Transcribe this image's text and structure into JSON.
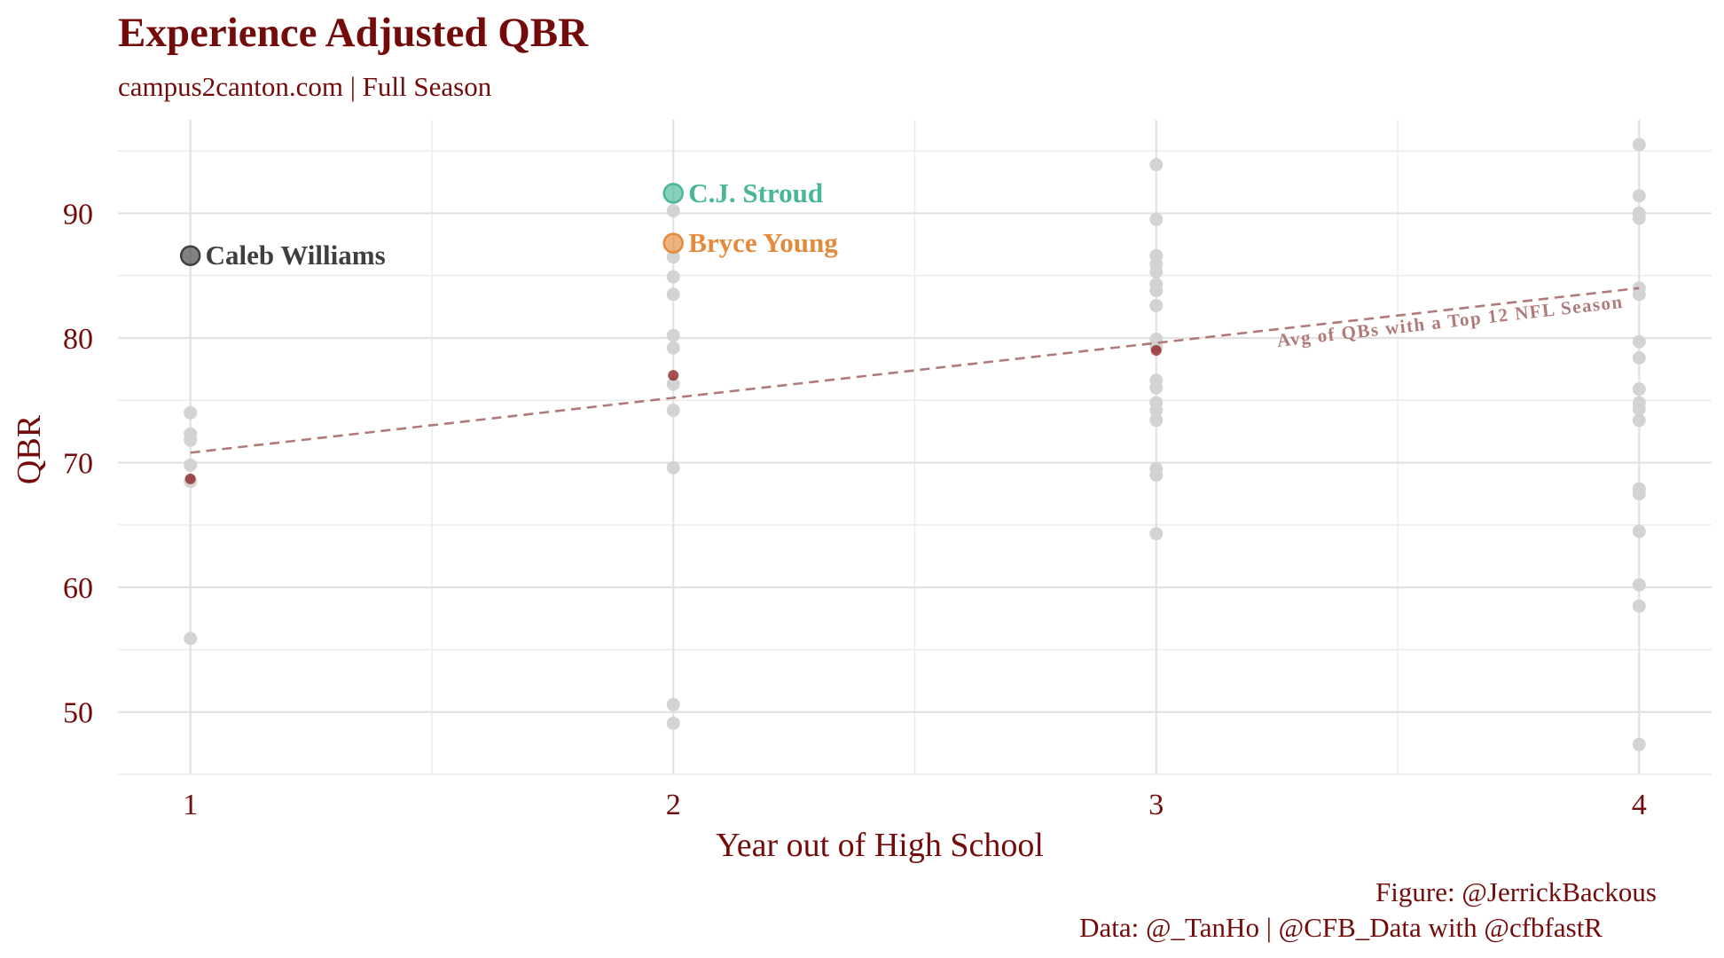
{
  "chart_data": {
    "type": "scatter",
    "title": "Experience Adjusted QBR",
    "subtitle": "campus2canton.com | Full Season",
    "xlabel": "Year out of High School",
    "ylabel": "QBR",
    "xlim": [
      0.85,
      4.15
    ],
    "ylim": [
      45,
      97.5
    ],
    "x_ticks": [
      1,
      2,
      3,
      4
    ],
    "y_ticks": [
      50,
      60,
      70,
      80,
      90
    ],
    "grid": true,
    "series": [
      {
        "role": "other-qbs",
        "color": "#d3d3d3",
        "points": [
          {
            "x": 1,
            "y": 74.0
          },
          {
            "x": 1,
            "y": 72.3
          },
          {
            "x": 1,
            "y": 71.8
          },
          {
            "x": 1,
            "y": 69.8
          },
          {
            "x": 1,
            "y": 68.5
          },
          {
            "x": 1,
            "y": 55.9
          },
          {
            "x": 2,
            "y": 90.2
          },
          {
            "x": 2,
            "y": 86.5
          },
          {
            "x": 2,
            "y": 84.9
          },
          {
            "x": 2,
            "y": 83.5
          },
          {
            "x": 2,
            "y": 80.2
          },
          {
            "x": 2,
            "y": 79.2
          },
          {
            "x": 2,
            "y": 76.3
          },
          {
            "x": 2,
            "y": 74.2
          },
          {
            "x": 2,
            "y": 69.6
          },
          {
            "x": 2,
            "y": 50.6
          },
          {
            "x": 2,
            "y": 49.1
          },
          {
            "x": 3,
            "y": 93.9
          },
          {
            "x": 3,
            "y": 89.5
          },
          {
            "x": 3,
            "y": 86.6
          },
          {
            "x": 3,
            "y": 85.9
          },
          {
            "x": 3,
            "y": 85.3
          },
          {
            "x": 3,
            "y": 84.3
          },
          {
            "x": 3,
            "y": 83.8
          },
          {
            "x": 3,
            "y": 82.6
          },
          {
            "x": 3,
            "y": 79.9
          },
          {
            "x": 3,
            "y": 79.3
          },
          {
            "x": 3,
            "y": 76.6
          },
          {
            "x": 3,
            "y": 76.0
          },
          {
            "x": 3,
            "y": 74.8
          },
          {
            "x": 3,
            "y": 74.2
          },
          {
            "x": 3,
            "y": 73.4
          },
          {
            "x": 3,
            "y": 69.5
          },
          {
            "x": 3,
            "y": 69.0
          },
          {
            "x": 3,
            "y": 64.3
          },
          {
            "x": 4,
            "y": 95.5
          },
          {
            "x": 4,
            "y": 91.4
          },
          {
            "x": 4,
            "y": 90.0
          },
          {
            "x": 4,
            "y": 89.6
          },
          {
            "x": 4,
            "y": 84.0
          },
          {
            "x": 4,
            "y": 83.5
          },
          {
            "x": 4,
            "y": 79.7
          },
          {
            "x": 4,
            "y": 78.4
          },
          {
            "x": 4,
            "y": 75.9
          },
          {
            "x": 4,
            "y": 74.8
          },
          {
            "x": 4,
            "y": 74.3
          },
          {
            "x": 4,
            "y": 73.4
          },
          {
            "x": 4,
            "y": 67.9
          },
          {
            "x": 4,
            "y": 67.5
          },
          {
            "x": 4,
            "y": 64.5
          },
          {
            "x": 4,
            "y": 60.2
          },
          {
            "x": 4,
            "y": 58.5
          },
          {
            "x": 4,
            "y": 47.4
          }
        ]
      },
      {
        "role": "year-averages",
        "color": "#8b1a1a",
        "points": [
          {
            "x": 1,
            "y": 68.7
          },
          {
            "x": 2,
            "y": 77.0
          },
          {
            "x": 3,
            "y": 79.0
          }
        ]
      }
    ],
    "highlighted": [
      {
        "name": "Caleb Williams",
        "x": 1,
        "y": 86.6,
        "color": "#3f3f3f"
      },
      {
        "name": "C.J. Stroud",
        "x": 2,
        "y": 91.6,
        "color": "#48b698"
      },
      {
        "name": "Bryce Young",
        "x": 2,
        "y": 87.6,
        "color": "#e38a3c"
      }
    ],
    "trendline": {
      "label": "Avg of QBs with a Top 12 NFL Season",
      "color": "#b07a7a",
      "x": [
        1,
        4
      ],
      "y": [
        70.8,
        84.0
      ]
    }
  },
  "caption": {
    "figure": "Figure: @JerrickBackous",
    "data": "Data: @_TanHo | @CFB_Data with @cfbfastR"
  }
}
